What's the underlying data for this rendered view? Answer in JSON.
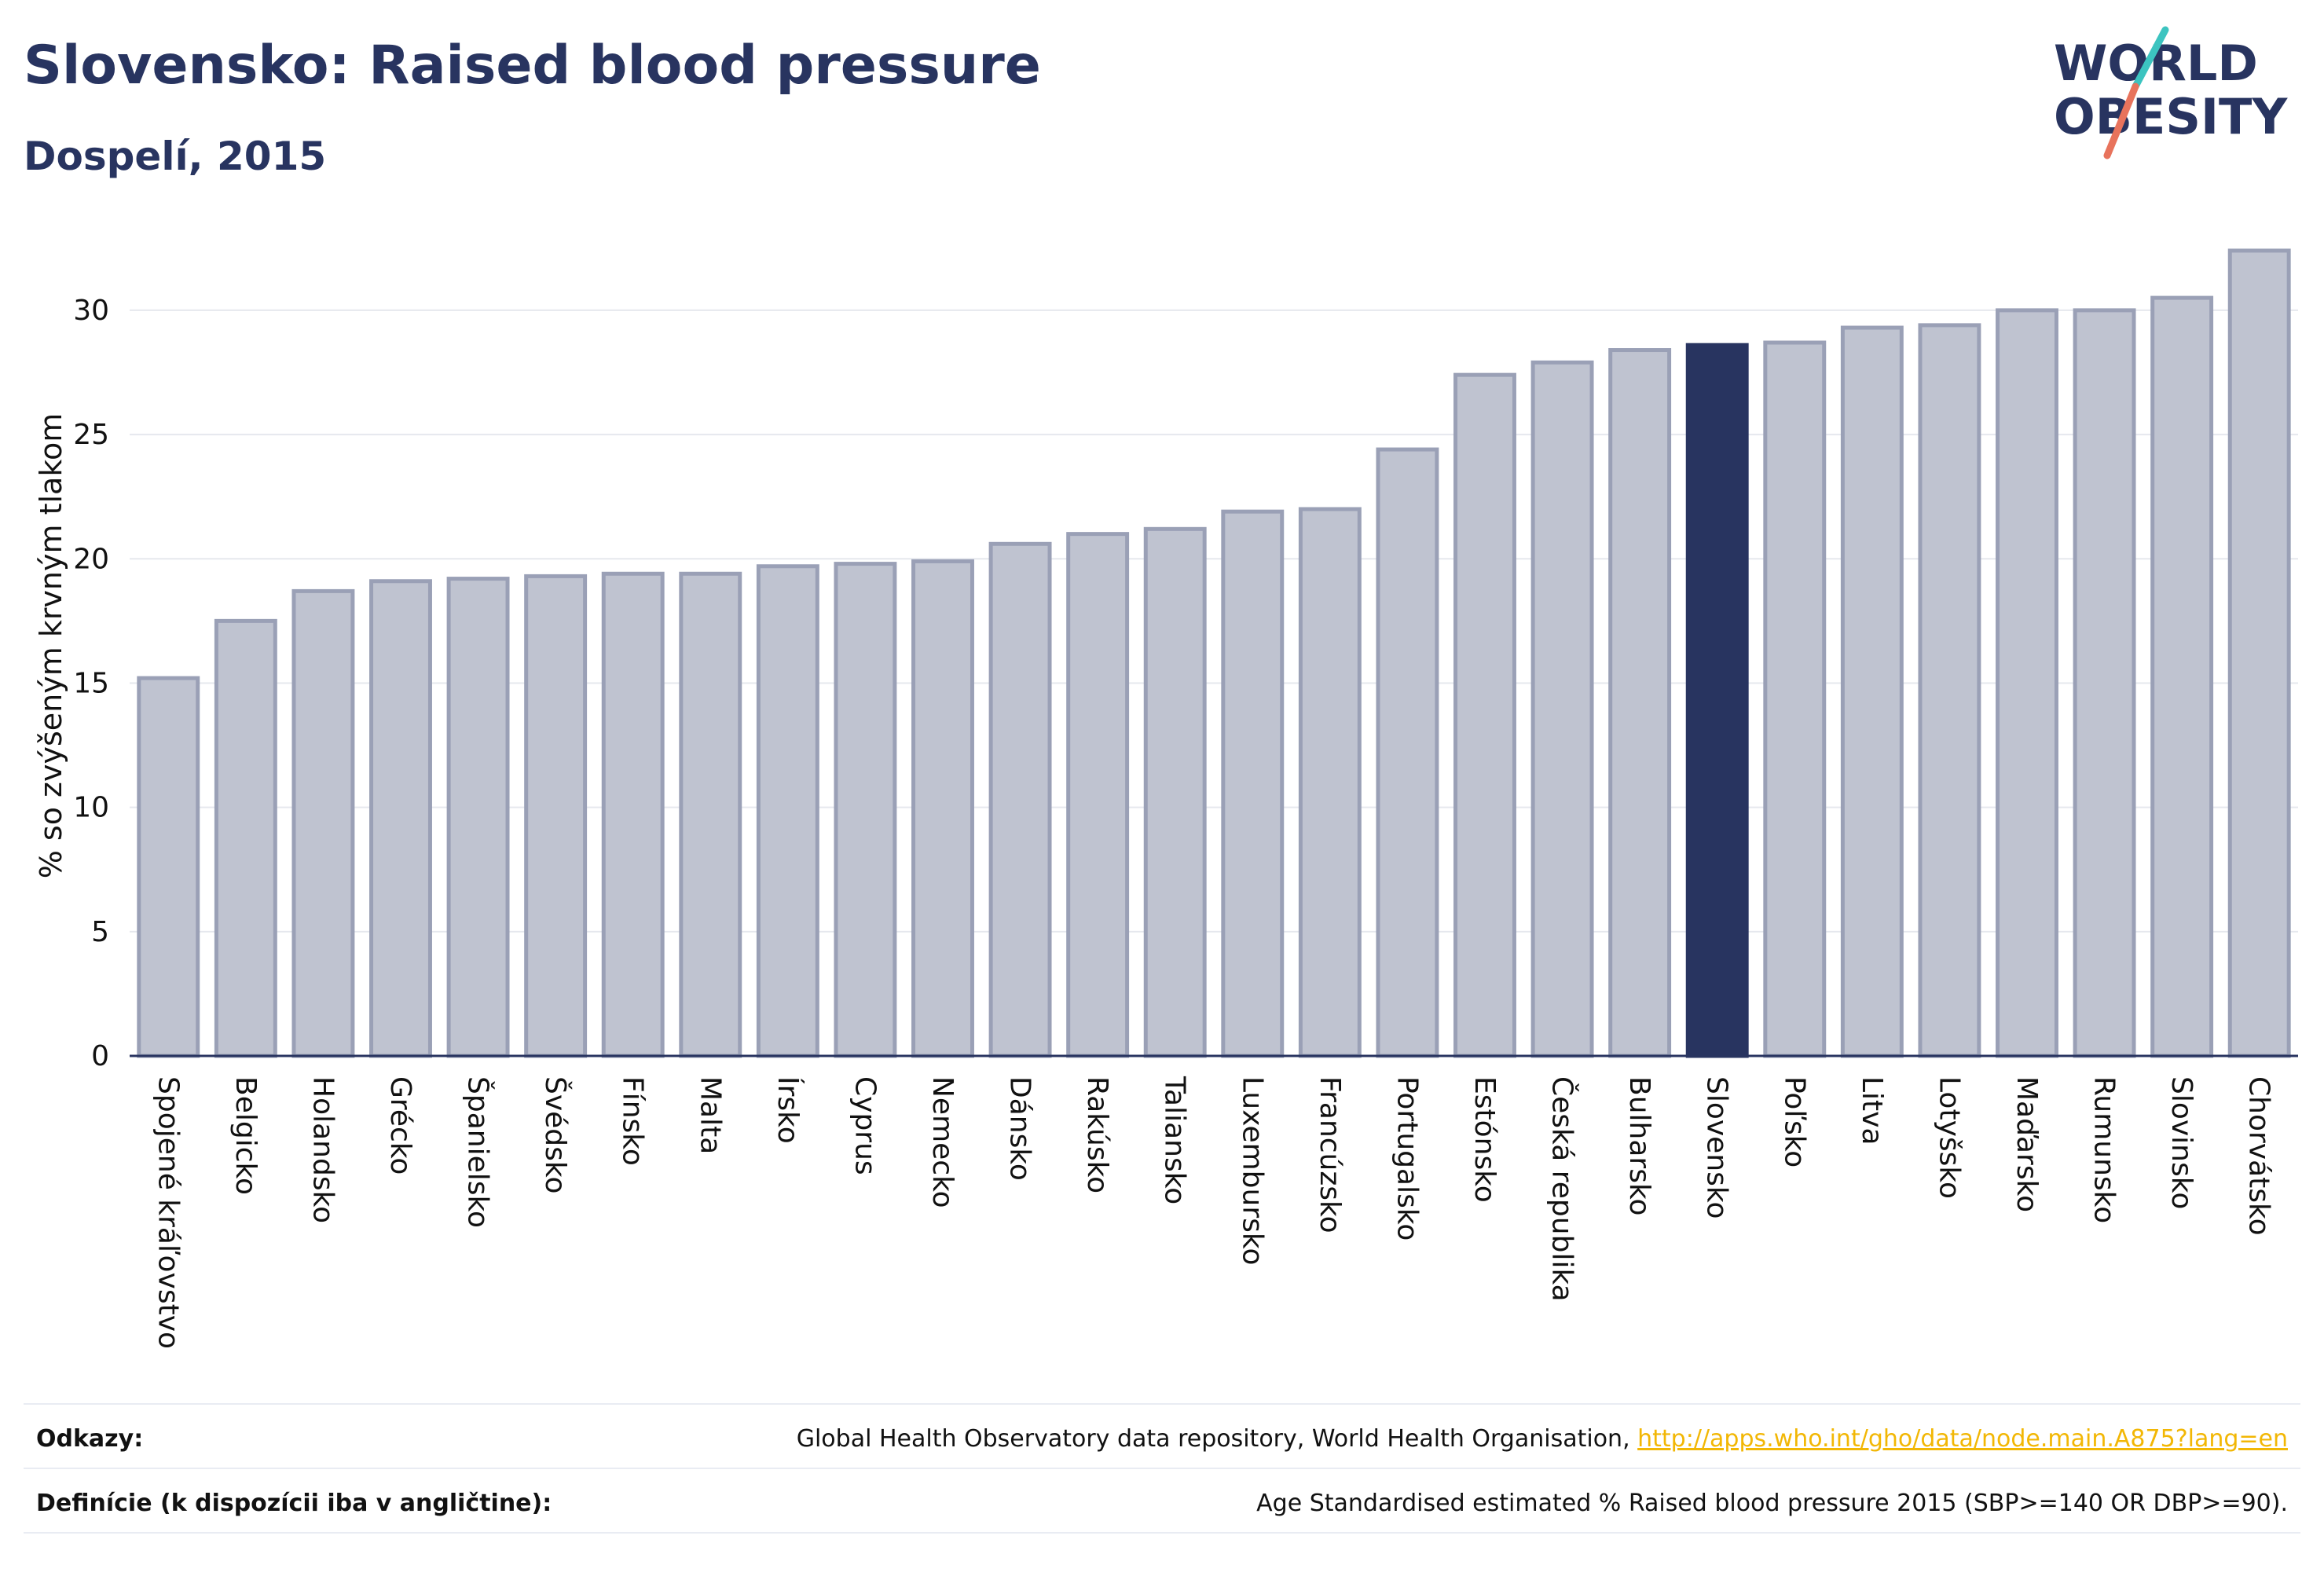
{
  "header": {
    "title": "Slovensko: Raised blood pressure",
    "subtitle": "Dospelí, 2015"
  },
  "logo": {
    "line1": "WORLD",
    "line2": "OBESITY",
    "slash_colors": [
      "#3cc4c0",
      "#e8735c"
    ]
  },
  "colors": {
    "bar": "#bfc3d0",
    "bar_border": "#9aa0b6",
    "highlight": "#283460",
    "axis": "#283460",
    "grid": "#e6e8ee"
  },
  "chart_data": {
    "type": "bar",
    "ylabel": "% so zvýšeným krvným tlakom",
    "ylim": [
      0,
      33
    ],
    "yticks": [
      0,
      5,
      10,
      15,
      20,
      25,
      30
    ],
    "grid": true,
    "highlight": "Slovensko",
    "categories": [
      "Spojené kráľovstvo",
      "Belgicko",
      "Holandsko",
      "Grécko",
      "Španielsko",
      "Švédsko",
      "Fínsko",
      "Malta",
      "Írsko",
      "Cyprus",
      "Nemecko",
      "Dánsko",
      "Rakúsko",
      "Taliansko",
      "Luxembursko",
      "Francúzsko",
      "Portugalsko",
      "Estónsko",
      "Česká republika",
      "Bulharsko",
      "Slovensko",
      "Poľsko",
      "Litva",
      "Lotyšsko",
      "Maďarsko",
      "Rumunsko",
      "Slovinsko",
      "Chorvátsko"
    ],
    "values": [
      15.2,
      17.5,
      18.7,
      19.1,
      19.2,
      19.3,
      19.4,
      19.4,
      19.7,
      19.8,
      19.9,
      20.6,
      21.0,
      21.2,
      21.9,
      22.0,
      24.4,
      27.4,
      27.9,
      28.4,
      28.6,
      28.7,
      29.3,
      29.4,
      30.0,
      30.0,
      30.5,
      32.4
    ]
  },
  "footer": {
    "sources_label": "Odkazy:",
    "sources_text": "Global Health Observatory data repository, World Health Organisation, ",
    "sources_link": "http://apps.who.int/gho/data/node.main.A875?lang=en",
    "definitions_label": "Definície (k dispozícii iba v angličtine):",
    "definitions_text": "Age Standardised estimated % Raised blood pressure 2015 (SBP>=140 OR DBP>=90)."
  }
}
